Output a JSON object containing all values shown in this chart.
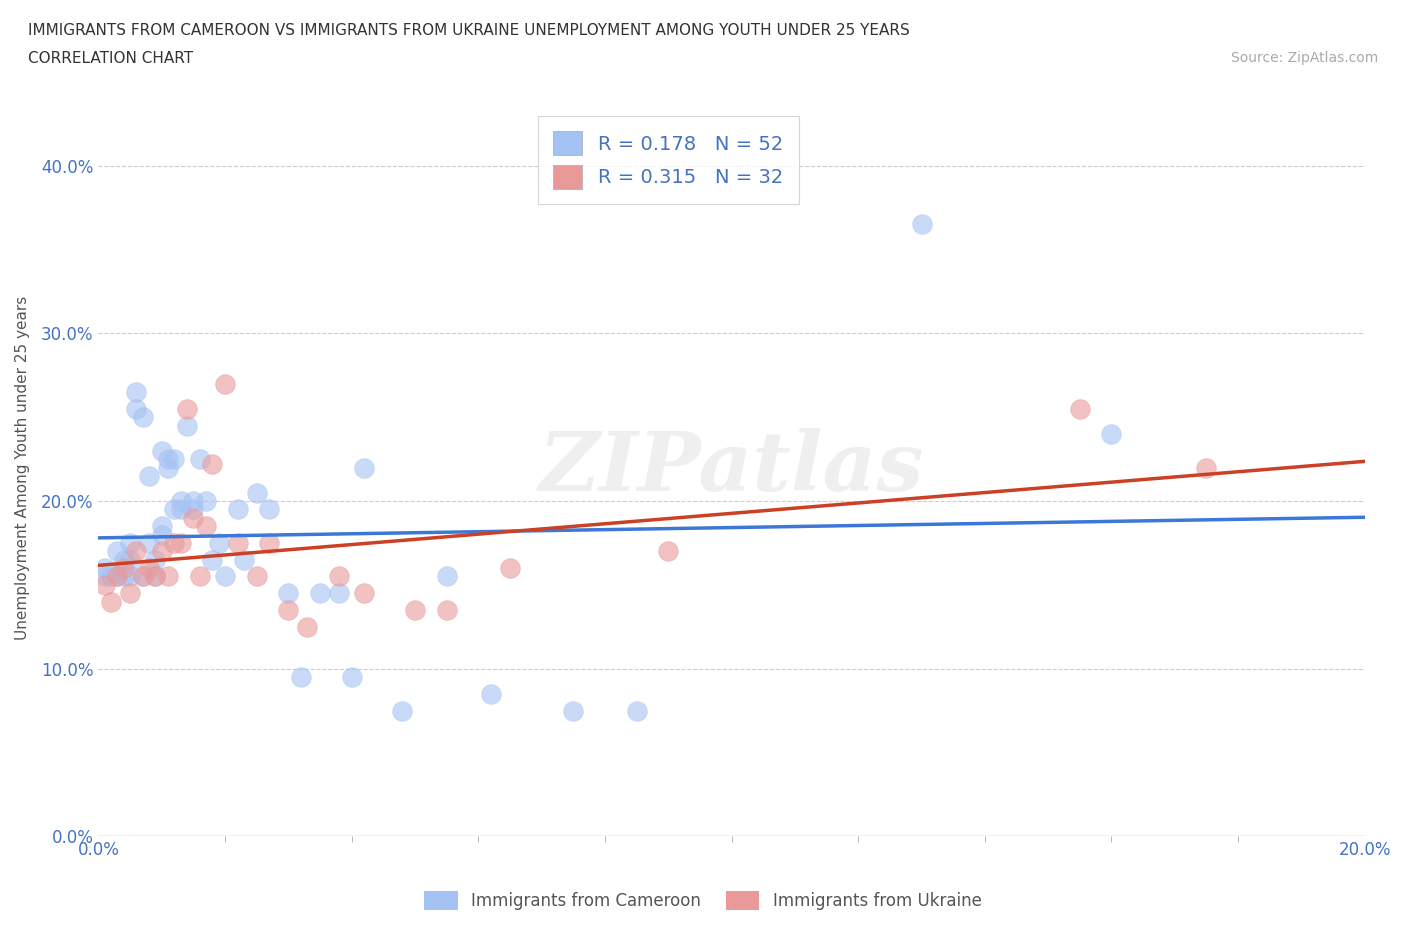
{
  "title_line1": "IMMIGRANTS FROM CAMEROON VS IMMIGRANTS FROM UKRAINE UNEMPLOYMENT AMONG YOUTH UNDER 25 YEARS",
  "title_line2": "CORRELATION CHART",
  "source_text": "Source: ZipAtlas.com",
  "ylabel": "Unemployment Among Youth under 25 years",
  "xlim": [
    0.0,
    0.2
  ],
  "ylim": [
    0.0,
    0.44
  ],
  "yticks": [
    0.0,
    0.1,
    0.2,
    0.3,
    0.4
  ],
  "xticks": [
    0.0,
    0.2
  ],
  "r_cameroon": 0.178,
  "n_cameroon": 52,
  "r_ukraine": 0.315,
  "n_ukraine": 32,
  "color_cameroon": "#a4c2f4",
  "color_ukraine": "#ea9999",
  "trend_color_cameroon": "#3c78d8",
  "trend_color_ukraine": "#cc4125",
  "legend_text_color": "#4472c4",
  "tick_color": "#4472c4",
  "watermark_text": "ZIPatlas",
  "cameroon_x": [
    0.001,
    0.001,
    0.002,
    0.003,
    0.003,
    0.004,
    0.004,
    0.005,
    0.005,
    0.005,
    0.006,
    0.006,
    0.007,
    0.007,
    0.008,
    0.008,
    0.009,
    0.009,
    0.01,
    0.01,
    0.01,
    0.011,
    0.011,
    0.012,
    0.012,
    0.013,
    0.013,
    0.014,
    0.015,
    0.015,
    0.016,
    0.017,
    0.018,
    0.019,
    0.02,
    0.022,
    0.023,
    0.025,
    0.027,
    0.03,
    0.032,
    0.035,
    0.038,
    0.04,
    0.042,
    0.048,
    0.055,
    0.062,
    0.075,
    0.085,
    0.13,
    0.16
  ],
  "cameroon_y": [
    0.155,
    0.16,
    0.155,
    0.17,
    0.155,
    0.165,
    0.155,
    0.175,
    0.165,
    0.155,
    0.265,
    0.255,
    0.25,
    0.155,
    0.175,
    0.215,
    0.165,
    0.155,
    0.185,
    0.23,
    0.18,
    0.225,
    0.22,
    0.225,
    0.195,
    0.2,
    0.195,
    0.245,
    0.2,
    0.195,
    0.225,
    0.2,
    0.165,
    0.175,
    0.155,
    0.195,
    0.165,
    0.205,
    0.195,
    0.145,
    0.095,
    0.145,
    0.145,
    0.095,
    0.22,
    0.075,
    0.155,
    0.085,
    0.075,
    0.075,
    0.365,
    0.24
  ],
  "ukraine_x": [
    0.001,
    0.002,
    0.003,
    0.004,
    0.005,
    0.006,
    0.007,
    0.008,
    0.009,
    0.01,
    0.011,
    0.012,
    0.013,
    0.014,
    0.015,
    0.016,
    0.017,
    0.018,
    0.02,
    0.022,
    0.025,
    0.027,
    0.03,
    0.033,
    0.038,
    0.042,
    0.05,
    0.055,
    0.065,
    0.09,
    0.155,
    0.175
  ],
  "ukraine_y": [
    0.15,
    0.14,
    0.155,
    0.16,
    0.145,
    0.17,
    0.155,
    0.16,
    0.155,
    0.17,
    0.155,
    0.175,
    0.175,
    0.255,
    0.19,
    0.155,
    0.185,
    0.222,
    0.27,
    0.175,
    0.155,
    0.175,
    0.135,
    0.125,
    0.155,
    0.145,
    0.135,
    0.135,
    0.16,
    0.17,
    0.255,
    0.22
  ]
}
